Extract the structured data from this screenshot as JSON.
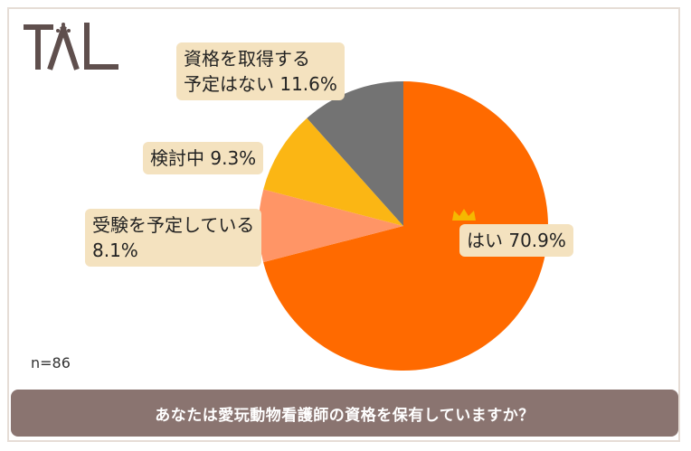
{
  "logo": {
    "text": "TAL",
    "icon": "tal-logo-icon"
  },
  "sample_size": "n=86",
  "question": "あなたは愛玩動物看護師の資格を保有していますか？",
  "labels": {
    "yes": "はい 70.9%",
    "planning_exam_line1": "受験を予定している",
    "planning_exam_line2": "8.1%",
    "considering": "検討中 9.3%",
    "no_plan_line1": "資格を取得する",
    "no_plan_line2": "予定はない 11.6%"
  },
  "colors": {
    "yes": "#ff6a00",
    "planning_exam": "#ff9566",
    "considering": "#fbb614",
    "no_plan": "#737373",
    "label_bg": "#f4e2bf",
    "bar_bg": "#8a7470",
    "crown": "#f5b800"
  },
  "chart_data": {
    "type": "pie",
    "title": "あなたは愛玩動物看護師の資格を保有していますか？",
    "sample_size": 86,
    "start_angle_deg": 0,
    "direction": "clockwise",
    "slices": [
      {
        "key": "yes",
        "label": "はい",
        "value": 70.9,
        "color": "#ff6a00"
      },
      {
        "key": "planning_exam",
        "label": "受験を予定している",
        "value": 8.1,
        "color": "#ff9566"
      },
      {
        "key": "considering",
        "label": "検討中",
        "value": 9.3,
        "color": "#fbb614"
      },
      {
        "key": "no_plan",
        "label": "資格を取得する予定はない",
        "value": 11.6,
        "color": "#737373"
      }
    ]
  }
}
